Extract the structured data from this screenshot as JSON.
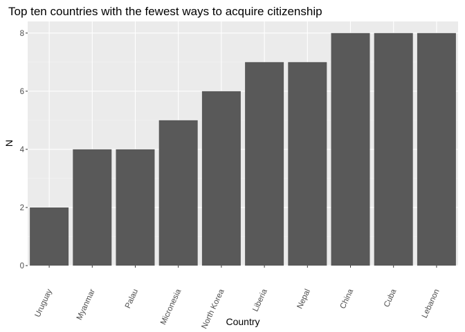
{
  "chart_data": {
    "type": "bar",
    "title": "Top ten countries with the fewest ways to acquire citizenship",
    "xlabel": "Country",
    "ylabel": "N",
    "categories": [
      "Uruguay",
      "Myanmar",
      "Palau",
      "Micronesia",
      "North Korea",
      "Liberia",
      "Nepal",
      "China",
      "Cuba",
      "Lebanon"
    ],
    "values": [
      2,
      4,
      4,
      5,
      6,
      7,
      7,
      8,
      8,
      8
    ],
    "ylim": [
      0,
      8.4
    ],
    "yticks": [
      0,
      2,
      4,
      6,
      8
    ],
    "grid": true,
    "legend": "none"
  },
  "colors": {
    "bar": "#595959",
    "panel": "#ebebeb",
    "grid_major": "#ffffff",
    "grid_minor": "#f4f4f4",
    "tick": "#333333"
  }
}
